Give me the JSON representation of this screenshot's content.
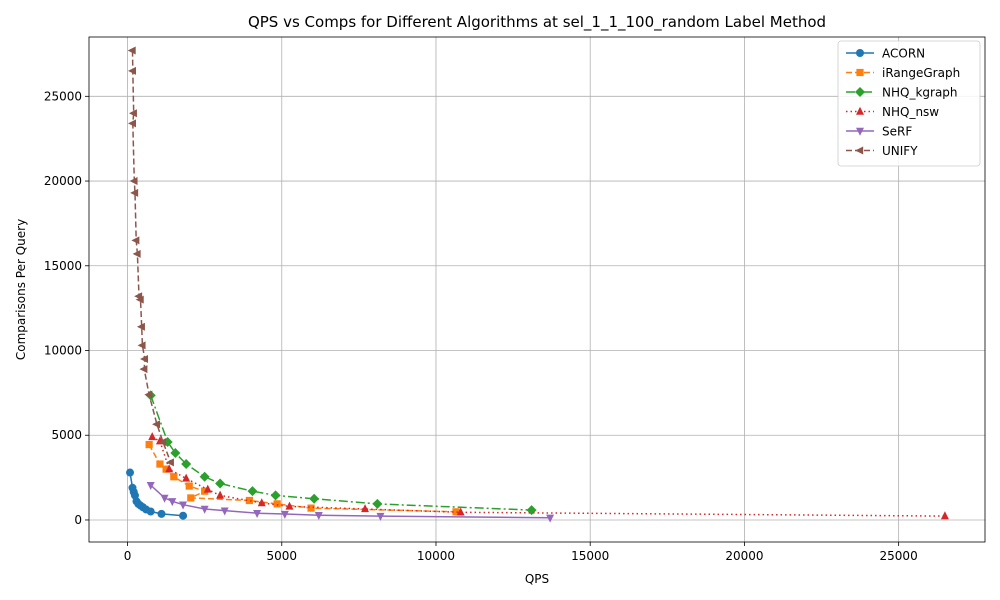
{
  "chart_data": {
    "type": "line",
    "title": "QPS vs Comps for Different Algorithms at sel_1_1_100_random Label Method",
    "xlabel": "QPS",
    "ylabel": "Comparisons Per Query",
    "xlim": [
      -1250,
      27800
    ],
    "ylim": [
      -1300,
      28500
    ],
    "xticks": [
      0,
      5000,
      10000,
      15000,
      20000,
      25000
    ],
    "yticks": [
      0,
      5000,
      10000,
      15000,
      20000,
      25000
    ],
    "grid": true,
    "legend_position": "upper right",
    "series": [
      {
        "name": "ACORN",
        "color": "#1f77b4",
        "marker": "circle",
        "dash": "",
        "points": [
          [
            80,
            2800
          ],
          [
            160,
            1900
          ],
          [
            200,
            1650
          ],
          [
            240,
            1450
          ],
          [
            290,
            1100
          ],
          [
            350,
            950
          ],
          [
            420,
            850
          ],
          [
            500,
            750
          ],
          [
            600,
            620
          ],
          [
            750,
            500
          ],
          [
            1100,
            360
          ],
          [
            1800,
            250
          ]
        ]
      },
      {
        "name": "iRangeGraph",
        "color": "#ff7f0e",
        "marker": "square",
        "dash": "6,3",
        "points": [
          [
            700,
            4450
          ],
          [
            1050,
            3300
          ],
          [
            1250,
            3000
          ],
          [
            1500,
            2550
          ],
          [
            2000,
            2000
          ],
          [
            2500,
            1700
          ],
          [
            2050,
            1300
          ],
          [
            3950,
            1150
          ],
          [
            4850,
            950
          ],
          [
            5950,
            700
          ],
          [
            10650,
            480
          ]
        ]
      },
      {
        "name": "NHQ_kgraph",
        "color": "#2ca02c",
        "marker": "diamond",
        "dash": "9,3,2,3",
        "points": [
          [
            750,
            7350
          ],
          [
            1300,
            4600
          ],
          [
            1550,
            3950
          ],
          [
            1900,
            3300
          ],
          [
            2500,
            2550
          ],
          [
            3000,
            2150
          ],
          [
            4050,
            1700
          ],
          [
            4800,
            1450
          ],
          [
            6050,
            1250
          ],
          [
            8100,
            950
          ],
          [
            13100,
            580
          ]
        ]
      },
      {
        "name": "NHQ_nsw",
        "color": "#d62728",
        "marker": "triangle-up",
        "dash": "1.5,3",
        "points": [
          [
            800,
            4900
          ],
          [
            1050,
            4650
          ],
          [
            1350,
            3000
          ],
          [
            1900,
            2450
          ],
          [
            2600,
            1800
          ],
          [
            3000,
            1450
          ],
          [
            4350,
            1000
          ],
          [
            5250,
            800
          ],
          [
            7700,
            650
          ],
          [
            10800,
            450
          ],
          [
            26500,
            230
          ]
        ]
      },
      {
        "name": "SeRF",
        "color": "#9467bd",
        "marker": "triangle-down",
        "dash": "",
        "points": [
          [
            750,
            2050
          ],
          [
            1200,
            1300
          ],
          [
            1450,
            1100
          ],
          [
            1800,
            900
          ],
          [
            2500,
            650
          ],
          [
            3150,
            550
          ],
          [
            4200,
            400
          ],
          [
            5100,
            350
          ],
          [
            6200,
            280
          ],
          [
            8200,
            230
          ],
          [
            13700,
            130
          ]
        ]
      },
      {
        "name": "UNIFY",
        "color": "#8c564b",
        "marker": "triangle-left",
        "dash": "6,3",
        "points": [
          [
            160,
            27700
          ],
          [
            170,
            26500
          ],
          [
            200,
            24000
          ],
          [
            170,
            23400
          ],
          [
            220,
            20000
          ],
          [
            240,
            19300
          ],
          [
            280,
            16500
          ],
          [
            320,
            15700
          ],
          [
            370,
            13200
          ],
          [
            420,
            13000
          ],
          [
            460,
            11400
          ],
          [
            480,
            10300
          ],
          [
            560,
            9500
          ],
          [
            540,
            8900
          ],
          [
            700,
            7400
          ],
          [
            950,
            5650
          ],
          [
            1150,
            4600
          ],
          [
            1400,
            3400
          ]
        ]
      }
    ]
  }
}
